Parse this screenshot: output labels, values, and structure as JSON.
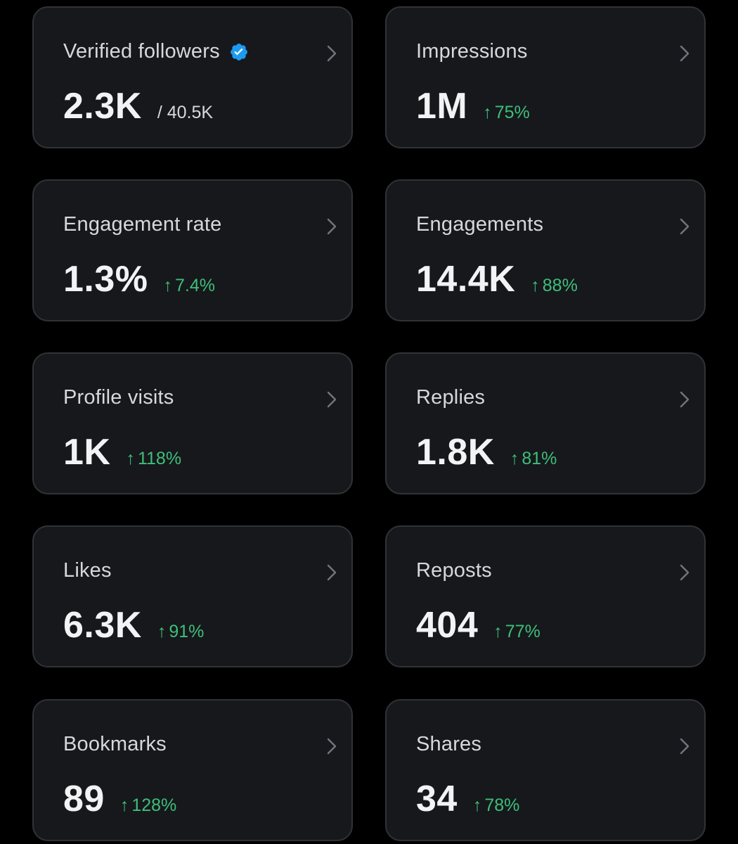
{
  "colors": {
    "background": "#000000",
    "card": "#16181c",
    "card_border": "#2f3336",
    "positive": "#3ebf7a",
    "verified": "#1d9bf0"
  },
  "cards": [
    {
      "label": "Verified followers",
      "value": "2.3K",
      "total": "/ 40.5K",
      "icon": "verified-badge-icon"
    },
    {
      "label": "Impressions",
      "value": "1M",
      "change": "75%",
      "arrow": "↑"
    },
    {
      "label": "Engagement rate",
      "value": "1.3%",
      "change": "7.4%",
      "arrow": "↑"
    },
    {
      "label": "Engagements",
      "value": "14.4K",
      "change": "88%",
      "arrow": "↑"
    },
    {
      "label": "Profile visits",
      "value": "1K",
      "change": "118%",
      "arrow": "↑"
    },
    {
      "label": "Replies",
      "value": "1.8K",
      "change": "81%",
      "arrow": "↑"
    },
    {
      "label": "Likes",
      "value": "6.3K",
      "change": "91%",
      "arrow": "↑"
    },
    {
      "label": "Reposts",
      "value": "404",
      "change": "77%",
      "arrow": "↑"
    },
    {
      "label": "Bookmarks",
      "value": "89",
      "change": "128%",
      "arrow": "↑"
    },
    {
      "label": "Shares",
      "value": "34",
      "change": "78%",
      "arrow": "↑"
    }
  ]
}
